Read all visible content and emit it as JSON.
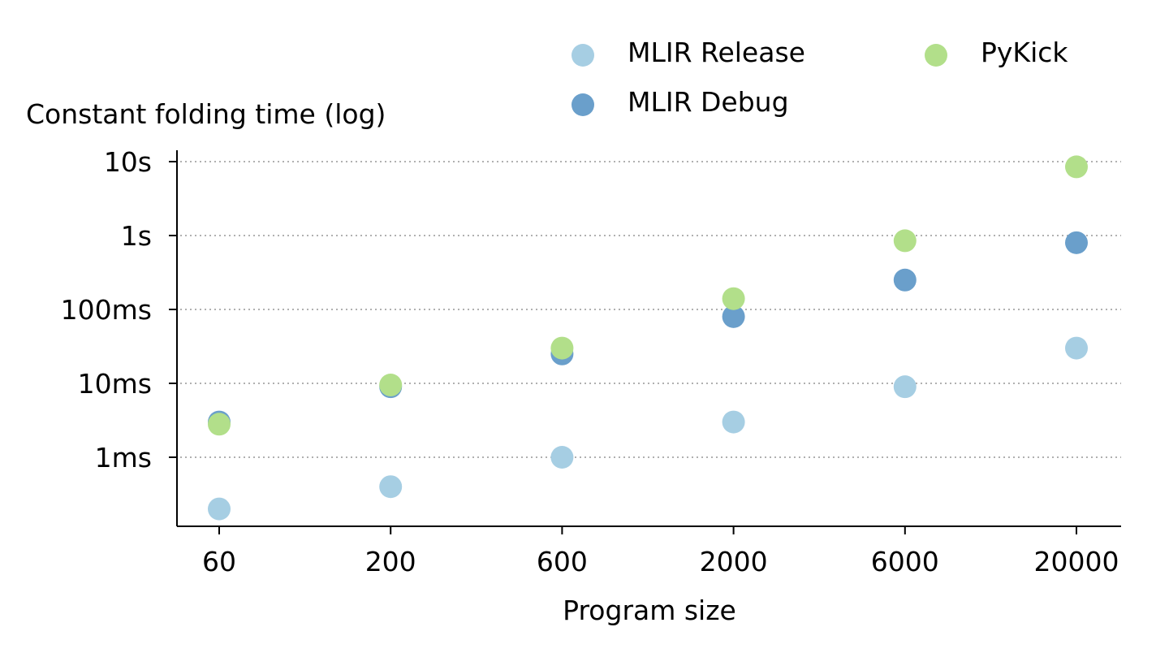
{
  "chart_data": {
    "type": "scatter",
    "xlabel": "Program size",
    "ylabel": "Constant folding time (log)",
    "x_scale": "log",
    "y_scale": "log",
    "y_unit": "seconds",
    "x": [
      60,
      200,
      600,
      2000,
      6000,
      20000
    ],
    "x_tick_labels": [
      "60",
      "200",
      "600",
      "2000",
      "6000",
      "20000"
    ],
    "y_ticks": [
      0.001,
      0.01,
      0.1,
      1,
      10
    ],
    "y_tick_labels": [
      "1ms",
      "10ms",
      "100ms",
      "1s",
      "10s"
    ],
    "ylim": [
      0.0001,
      15
    ],
    "grid": "horizontal dotted",
    "legend_position": "top-right",
    "series": [
      {
        "name": "MLIR Release",
        "color": "#a6cee3",
        "values": [
          0.0002,
          0.0004,
          0.001,
          0.003,
          0.009,
          0.03
        ]
      },
      {
        "name": "MLIR Debug",
        "color": "#6a9fcb",
        "values": [
          0.003,
          0.009,
          0.025,
          0.08,
          0.25,
          0.8
        ]
      },
      {
        "name": "PyKick",
        "color": "#b2df8a",
        "values": [
          0.0028,
          0.0095,
          0.03,
          0.14,
          0.85,
          8.5
        ]
      }
    ]
  }
}
